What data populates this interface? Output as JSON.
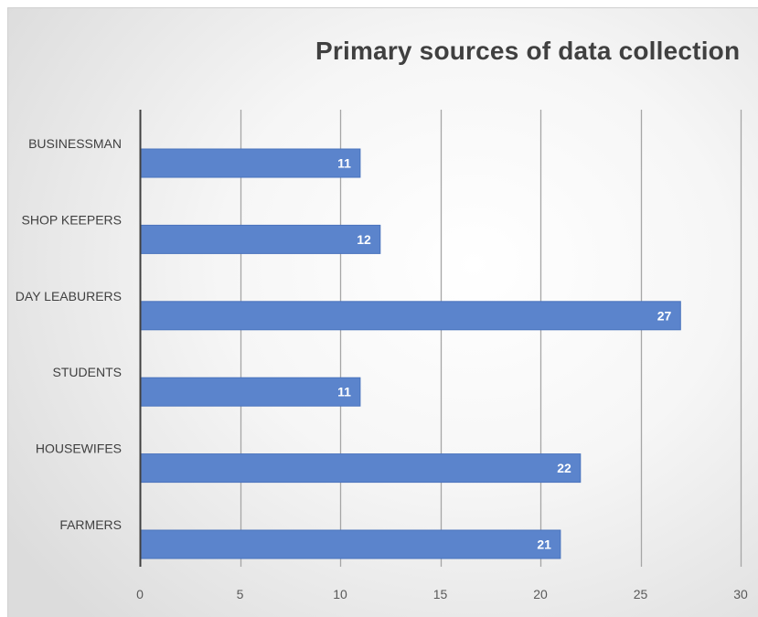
{
  "chart_data": {
    "type": "bar",
    "orientation": "horizontal",
    "title": "Primary sources of data collection",
    "xlabel": "",
    "ylabel": "",
    "categories": [
      "BUSINESSMAN",
      "SHOP KEEPERS",
      "DAY LEABURERS",
      "STUDENTS",
      "HOUSEWIFES",
      "FARMERS"
    ],
    "values": [
      11,
      12,
      27,
      11,
      22,
      21
    ],
    "xlim": [
      0,
      30
    ],
    "xticks": [
      0,
      5,
      10,
      15,
      20,
      25,
      30
    ],
    "grid": true,
    "legend": "none",
    "data_labels": true,
    "colors": {
      "bar": "#5b84cc",
      "bar_stroke": "#4a73bd",
      "grid": "#a6a6a6",
      "axis": "#404040"
    }
  }
}
